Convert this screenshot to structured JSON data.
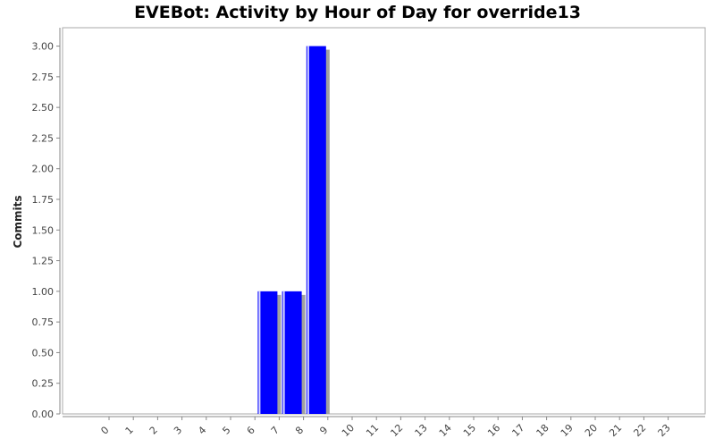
{
  "colors": {
    "bar": "#0000ff",
    "bar_highlight": "#ffffff",
    "bar_shadow": "#a0a0a0",
    "axis": "#888888",
    "plot_border": "#aaaaaa",
    "background": "#ffffff"
  },
  "chart_data": {
    "type": "bar",
    "title": "EVEBot: Activity by Hour of Day for override13",
    "xlabel": "",
    "ylabel": "Commits",
    "categories": [
      "0",
      "1",
      "2",
      "3",
      "4",
      "5",
      "6",
      "7",
      "8",
      "9",
      "10",
      "11",
      "12",
      "13",
      "14",
      "15",
      "16",
      "17",
      "18",
      "19",
      "20",
      "21",
      "22",
      "23"
    ],
    "values": [
      0,
      0,
      0,
      0,
      0,
      0,
      0,
      1,
      1,
      3,
      0,
      0,
      0,
      0,
      0,
      0,
      0,
      0,
      0,
      0,
      0,
      0,
      0,
      0
    ],
    "ylim": [
      0,
      3.15
    ],
    "yticks": [
      "0.00",
      "0.25",
      "0.50",
      "0.75",
      "1.00",
      "1.25",
      "1.50",
      "1.75",
      "2.00",
      "2.25",
      "2.50",
      "2.75",
      "3.00"
    ],
    "grid": false,
    "legend": "none"
  }
}
